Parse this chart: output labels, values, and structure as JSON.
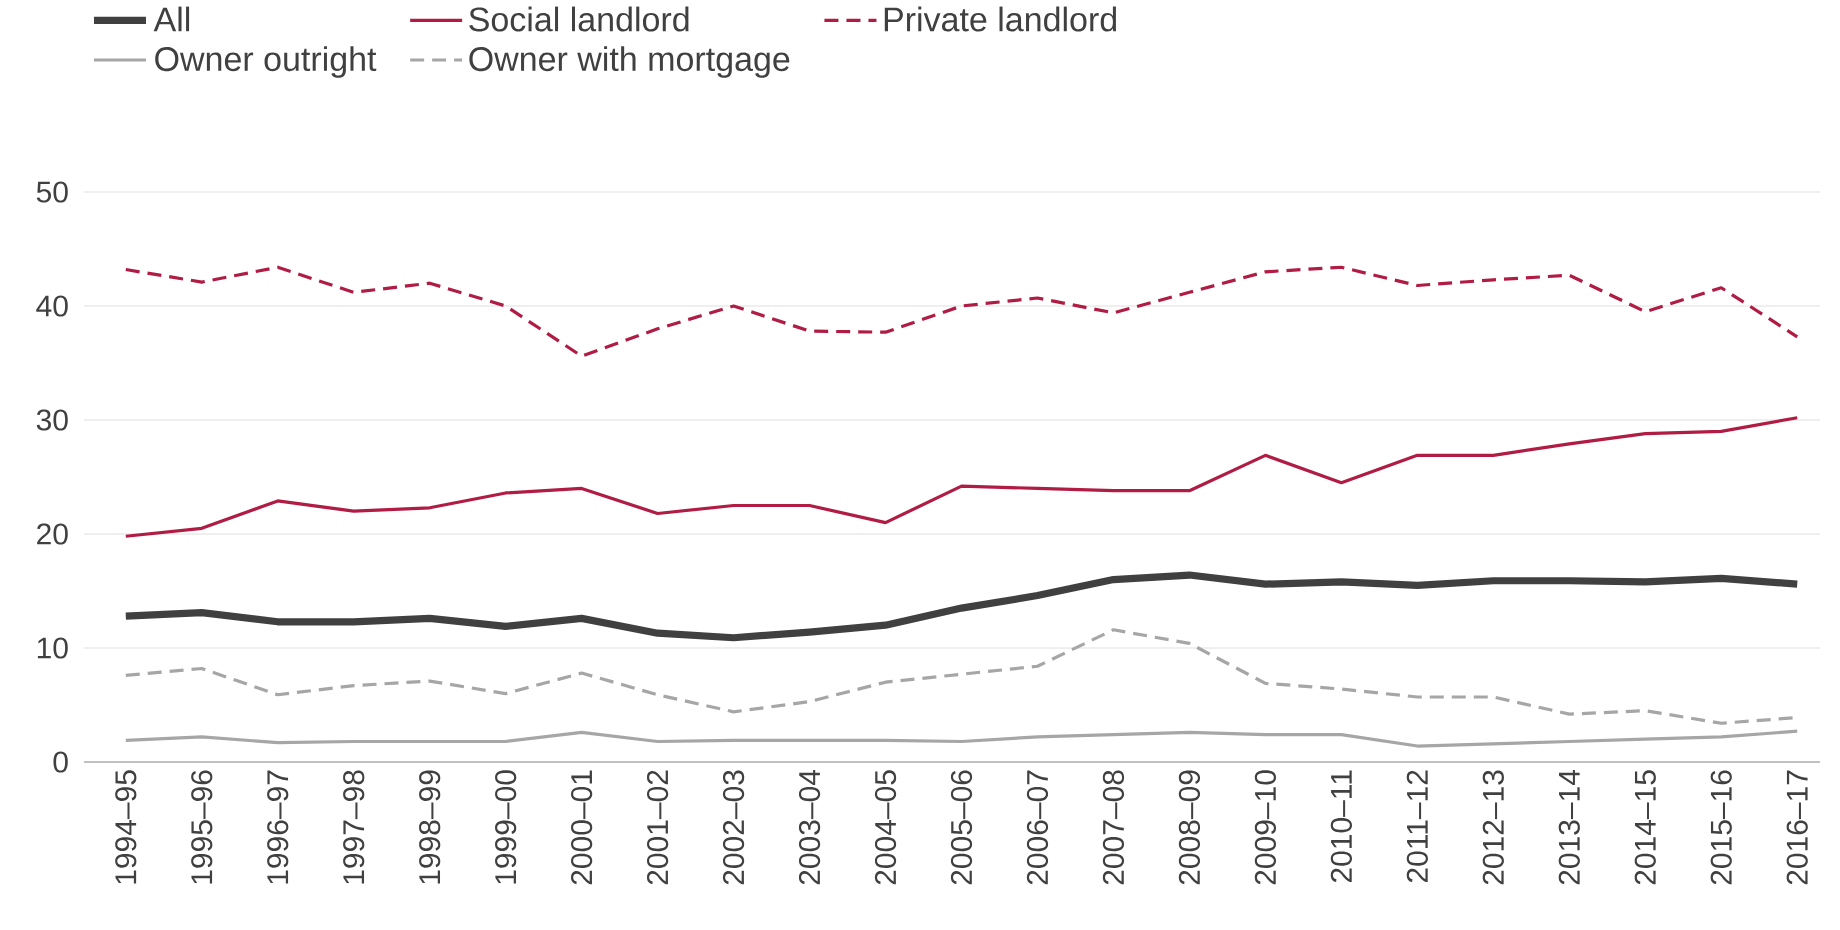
{
  "chart_data": {
    "type": "line",
    "categories": [
      "1994–95",
      "1995–96",
      "1996–97",
      "1997–98",
      "1998–99",
      "1999–00",
      "2000–01",
      "2001–02",
      "2002–03",
      "2003–04",
      "2004–05",
      "2005–06",
      "2006–07",
      "2007–08",
      "2008–09",
      "2009–10",
      "2010–11",
      "2011–12",
      "2012–13",
      "2013–14",
      "2014–15",
      "2015–16",
      "2016–17"
    ],
    "series": [
      {
        "name": "All",
        "color": "#404040",
        "line_style": "solid",
        "values": [
          12.8,
          13.1,
          12.3,
          12.3,
          12.6,
          11.9,
          12.6,
          11.3,
          10.9,
          11.4,
          12.0,
          13.5,
          14.6,
          16.0,
          16.4,
          15.6,
          15.8,
          15.5,
          15.9,
          15.9,
          15.8,
          16.1,
          15.6
        ]
      },
      {
        "name": "Social landlord",
        "color": "#b01c44",
        "line_style": "solid",
        "values": [
          19.8,
          20.5,
          22.9,
          22.0,
          22.3,
          23.6,
          24.0,
          21.8,
          22.5,
          22.5,
          21.0,
          24.2,
          24.0,
          23.8,
          23.8,
          26.9,
          24.5,
          26.9,
          26.9,
          27.9,
          28.8,
          29.0,
          30.2
        ]
      },
      {
        "name": "Private landlord",
        "color": "#b01c44",
        "line_style": "dashed",
        "values": [
          43.2,
          42.1,
          43.4,
          41.2,
          42.0,
          40.0,
          35.6,
          38.0,
          40.0,
          37.8,
          37.7,
          40.0,
          40.7,
          39.4,
          41.2,
          43.0,
          43.4,
          41.8,
          42.3,
          42.7,
          39.5,
          41.6,
          37.3
        ]
      },
      {
        "name": "Owner outright",
        "color": "#a6a6a6",
        "line_style": "solid",
        "values": [
          1.9,
          2.2,
          1.7,
          1.8,
          1.8,
          1.8,
          2.6,
          1.8,
          1.9,
          1.9,
          1.9,
          1.8,
          2.2,
          2.4,
          2.6,
          2.4,
          2.4,
          1.4,
          1.6,
          1.8,
          2.0,
          2.2,
          2.7
        ]
      },
      {
        "name": "Owner with mortgage",
        "color": "#a6a6a6",
        "line_style": "dashed",
        "values": [
          7.6,
          8.2,
          5.9,
          6.7,
          7.1,
          6.0,
          7.8,
          5.9,
          4.4,
          5.3,
          7.0,
          7.7,
          8.4,
          11.6,
          10.4,
          6.9,
          6.4,
          5.7,
          5.7,
          4.2,
          4.5,
          3.4,
          3.9
        ]
      }
    ],
    "ylim": [
      0,
      50
    ],
    "yticks": [
      0,
      10,
      20,
      30,
      40,
      50
    ],
    "grid": "y",
    "legend": "top left",
    "marker": "none"
  }
}
